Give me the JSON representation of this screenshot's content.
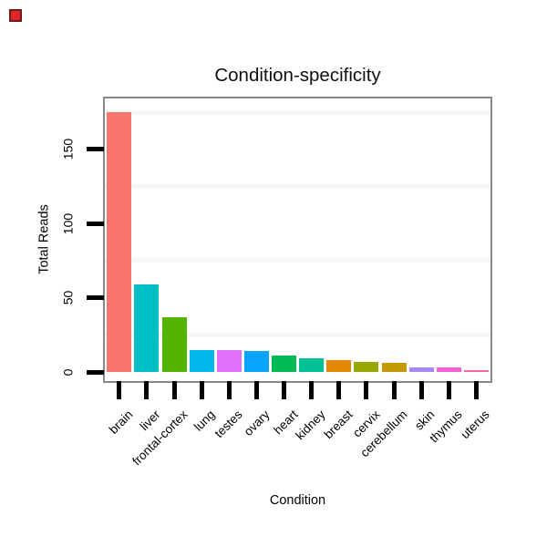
{
  "corner_marker": {
    "label": "red-square",
    "fill": "#df252b",
    "border": "#6e1b1b"
  },
  "chart_data": {
    "type": "bar",
    "title": "Condition-specificity",
    "xlabel": "Condition",
    "ylabel": "Total Reads",
    "categories": [
      "brain",
      "liver",
      "frontal-cortex",
      "lung",
      "testes",
      "ovary",
      "heart",
      "kidney",
      "breast",
      "cervix",
      "cerebellum",
      "skin",
      "thymus",
      "uterus"
    ],
    "values": [
      175,
      59,
      37,
      15,
      15,
      14,
      11,
      9,
      8,
      7,
      6,
      3,
      3,
      1
    ],
    "bar_colors": [
      "#F8766D",
      "#00BFC4",
      "#53B400",
      "#00B6EB",
      "#DF70F8",
      "#06A4FF",
      "#00BC56",
      "#00C094",
      "#E38900",
      "#99A800",
      "#C49A00",
      "#A58AFF",
      "#FB61D7",
      "#FF66A8"
    ],
    "yticks": [
      0,
      50,
      100,
      150
    ],
    "ylim": [
      -6,
      184
    ],
    "minor_gridlines": [
      25,
      75,
      125,
      175
    ],
    "grid": "faint minor horizontal gridlines only",
    "legend": "none",
    "background_color": "#ffffff",
    "panel_border_color": "#898989",
    "axis_tick_color": "#000000",
    "minor_grid_color": "#f6f6f6",
    "text_color": "#000000"
  }
}
